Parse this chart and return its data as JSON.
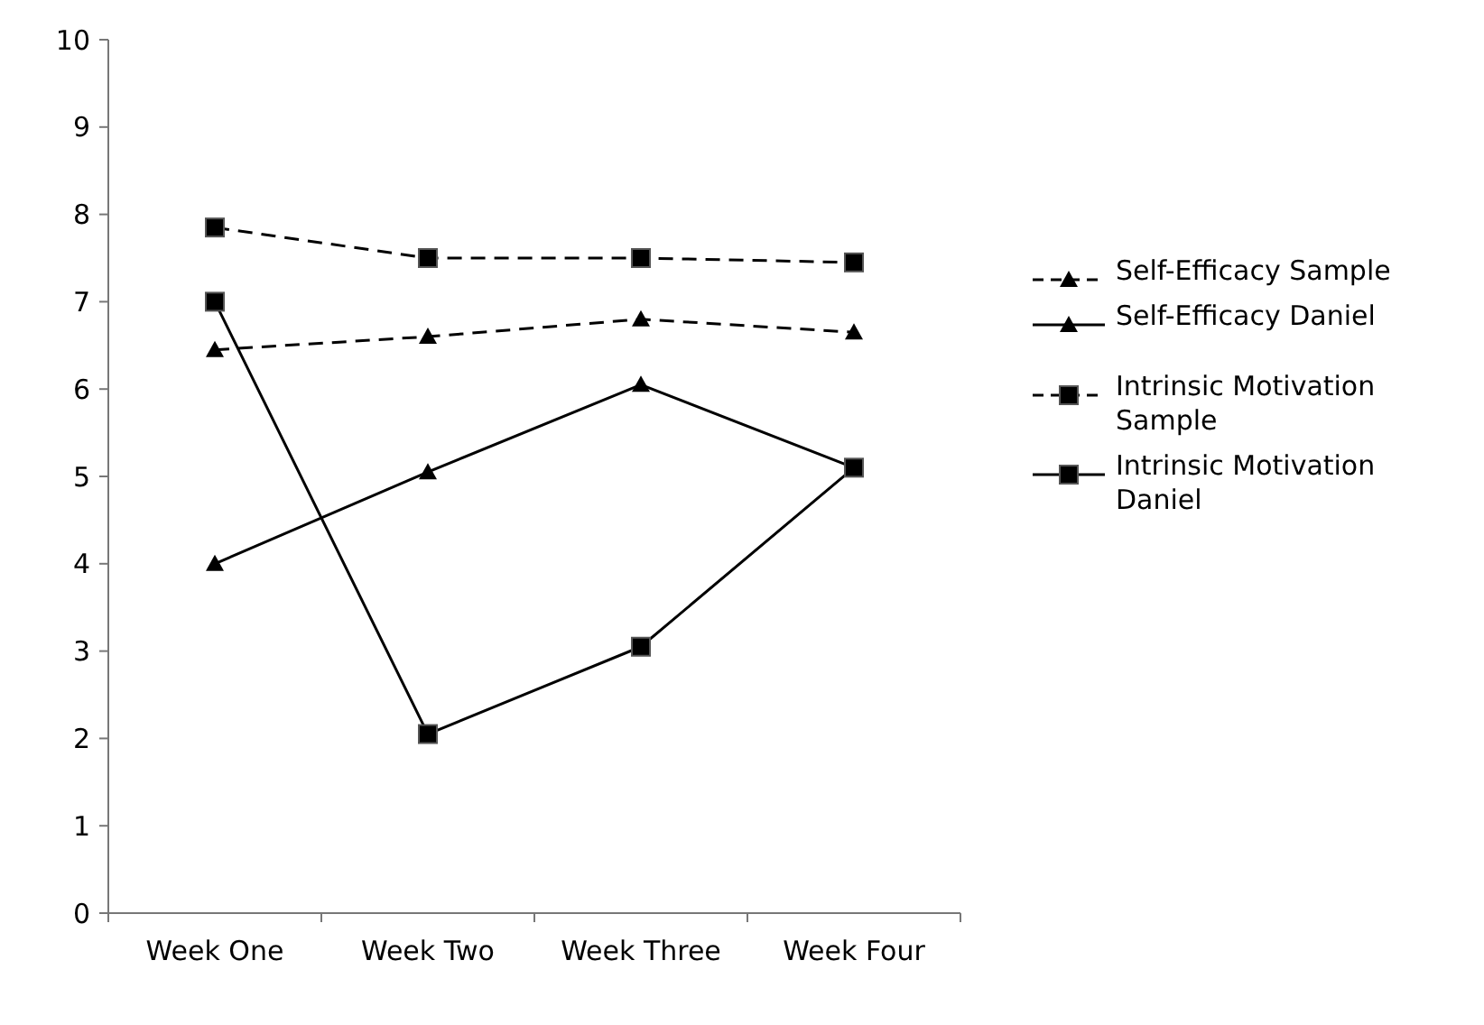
{
  "chart_data": {
    "type": "line",
    "categories": [
      "Week One",
      "Week Two",
      "Week Three",
      "Week Four"
    ],
    "series": [
      {
        "name": "Self-Efficacy Sample",
        "color": "#000000",
        "values": [
          6.45,
          6.6,
          6.8,
          6.65
        ],
        "marker": "triangle",
        "line_style": "dashed"
      },
      {
        "name": "Self-Efficacy Daniel",
        "color": "#000000",
        "values": [
          4.0,
          5.05,
          6.05,
          5.1
        ],
        "marker": "triangle",
        "line_style": "solid"
      },
      {
        "name": "Intrinsic Motivation Sample",
        "color": "#000000",
        "values": [
          7.85,
          7.5,
          7.5,
          7.45
        ],
        "marker": "square",
        "line_style": "dashed"
      },
      {
        "name": "Intrinsic Motivation Daniel",
        "color": "#000000",
        "values": [
          7.0,
          2.05,
          3.05,
          5.1
        ],
        "marker": "square",
        "line_style": "solid"
      }
    ],
    "ylim": [
      0,
      10
    ],
    "yticks": [
      0,
      1,
      2,
      3,
      4,
      5,
      6,
      7,
      8,
      9,
      10
    ],
    "grid": false,
    "legend": "right"
  }
}
